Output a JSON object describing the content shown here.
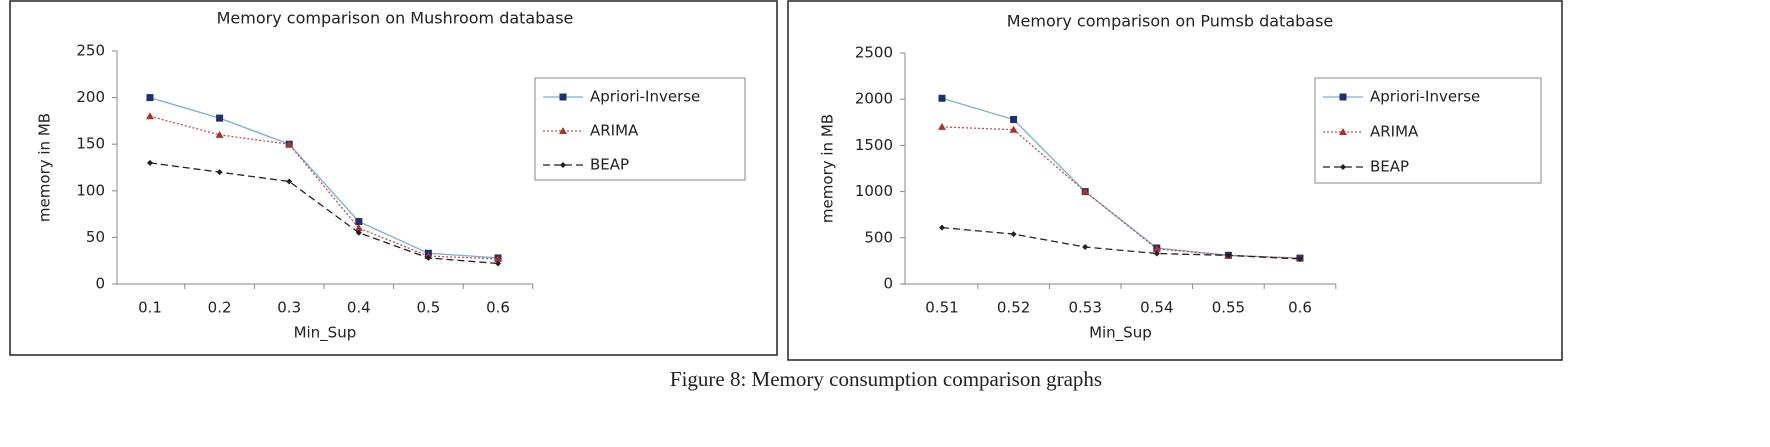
{
  "chart_data": [
    {
      "type": "line",
      "title": "Memory comparison on Mushroom database",
      "x_label": "Min_Sup",
      "y_label": "memory in MB",
      "categories": [
        "0.1",
        "0.2",
        "0.3",
        "0.4",
        "0.5",
        "0.6"
      ],
      "ylim": [
        0,
        250
      ],
      "yticks": [
        0,
        50,
        100,
        150,
        200,
        250
      ],
      "grid": false,
      "legend": "right",
      "series": [
        {
          "name": "Apriori-Inverse",
          "color": "#7aaed6",
          "marker_color": "#1f2f6e",
          "marker": "square",
          "dash": "solid",
          "values": [
            200,
            178,
            150,
            67,
            33,
            28
          ]
        },
        {
          "name": "ARIMA",
          "color": "#c0504d",
          "marker_color": "#a8322f",
          "marker": "triangle",
          "dash": "dotted",
          "values": [
            180,
            160,
            150,
            60,
            30,
            27
          ]
        },
        {
          "name": "BEAP",
          "color": "#222222",
          "marker_color": "#222222",
          "marker": "diamond",
          "dash": "dashed",
          "values": [
            130,
            120,
            110,
            55,
            28,
            22
          ]
        }
      ]
    },
    {
      "type": "line",
      "title": "Memory comparison on Pumsb database",
      "x_label": "Min_Sup",
      "y_label": "memory in MB",
      "categories": [
        "0.51",
        "0.52",
        "0.53",
        "0.54",
        "0.55",
        "0.6"
      ],
      "ylim": [
        0,
        2500
      ],
      "yticks": [
        0,
        500,
        1000,
        1500,
        2000,
        2500
      ],
      "grid": false,
      "legend": "right",
      "series": [
        {
          "name": "Apriori-Inverse",
          "color": "#7aaed6",
          "marker_color": "#1f2f6e",
          "marker": "square",
          "dash": "solid",
          "values": [
            2010,
            1780,
            1000,
            390,
            310,
            280
          ]
        },
        {
          "name": "ARIMA",
          "color": "#c0504d",
          "marker_color": "#a8322f",
          "marker": "triangle",
          "dash": "dotted",
          "values": [
            1700,
            1670,
            1000,
            380,
            310,
            280
          ]
        },
        {
          "name": "BEAP",
          "color": "#222222",
          "marker_color": "#222222",
          "marker": "diamond",
          "dash": "dashed",
          "values": [
            610,
            540,
            400,
            330,
            310,
            270
          ]
        }
      ]
    }
  ],
  "caption": "Figure 8: Memory consumption comparison graphs"
}
